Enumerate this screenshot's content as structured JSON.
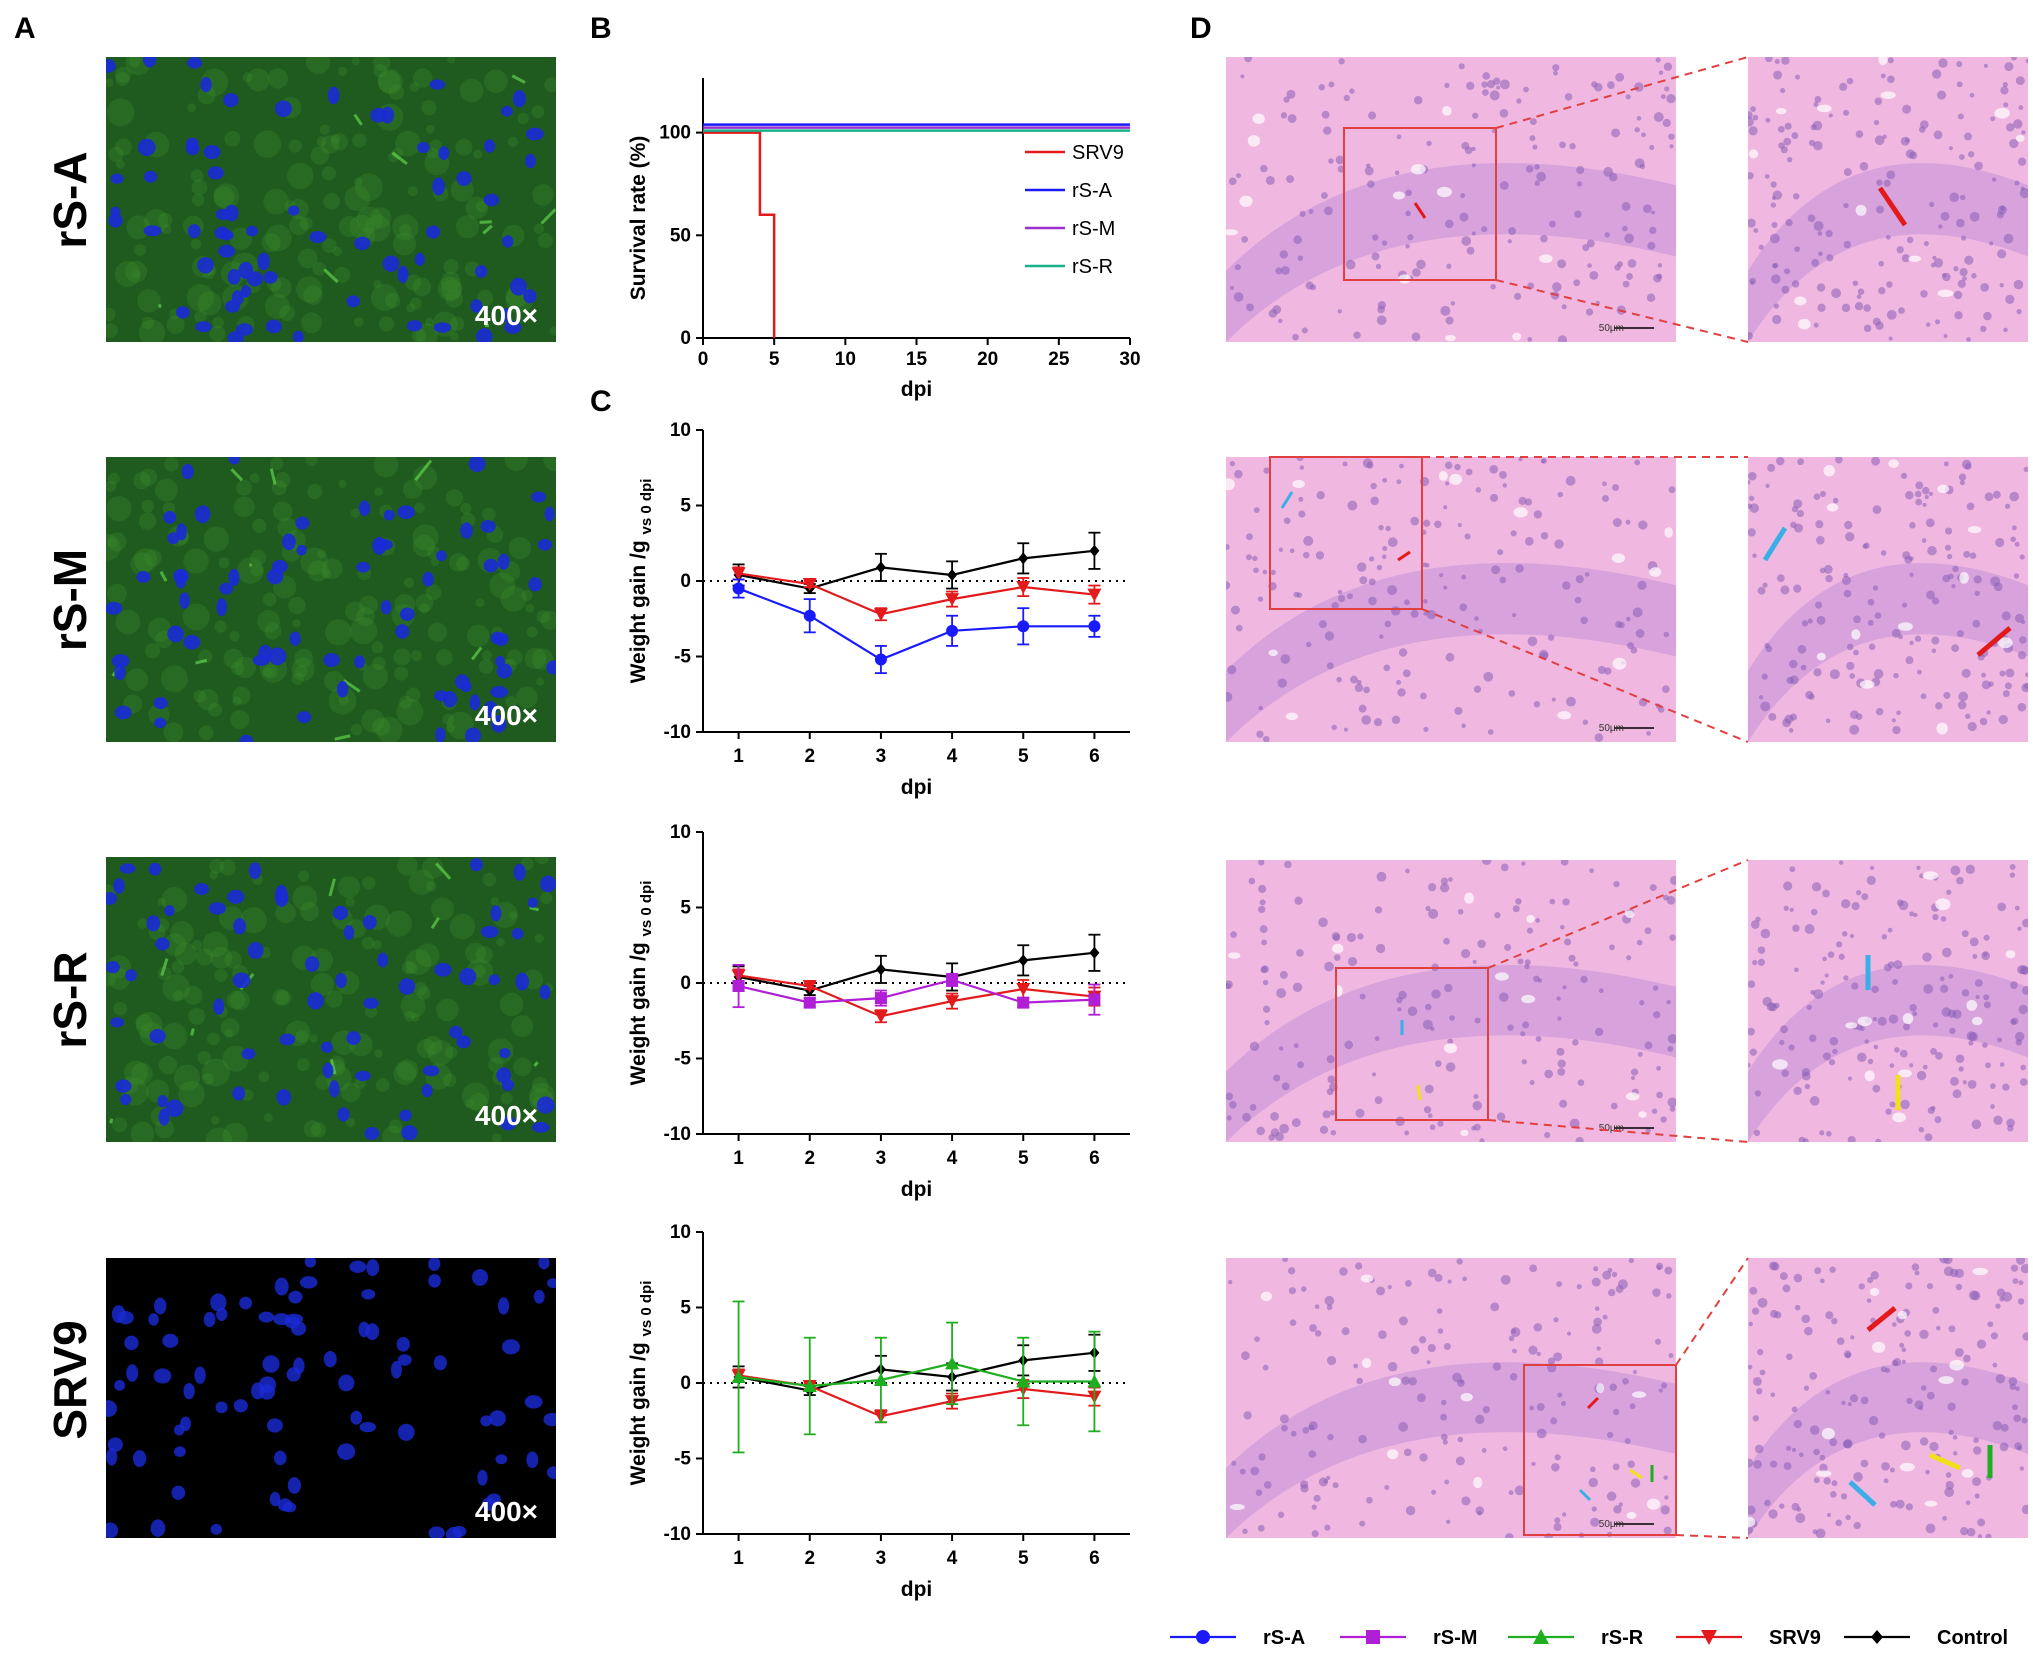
{
  "panels": {
    "A": "A",
    "B": "B",
    "C": "C",
    "D": "D"
  },
  "rows": [
    "rS-A",
    "rS-M",
    "rS-R",
    "SRV9"
  ],
  "magnification": "400×",
  "scale_bar": "50μm",
  "legend": [
    {
      "name": "rS-A",
      "color": "#1a1aff",
      "marker": "circle"
    },
    {
      "name": "rS-M",
      "color": "#b01fd6",
      "marker": "square"
    },
    {
      "name": "rS-R",
      "color": "#1fae1f",
      "marker": "triangle-up"
    },
    {
      "name": "SRV9",
      "color": "#e31a1c",
      "marker": "triangle-down"
    },
    {
      "name": "Control",
      "color": "#000000",
      "marker": "diamond"
    }
  ],
  "colors": {
    "fluor_bg": "#1f5a1f",
    "nucleus": "#1a2bd6",
    "he_bg": "#f0b8e0",
    "he_cells": "#8a5fb8"
  },
  "chart_data": [
    {
      "type": "line",
      "panel": "B",
      "xlabel": "dpi",
      "ylabel": "Survival rate (%)",
      "xlim": [
        0,
        30
      ],
      "ylim": [
        0,
        100
      ],
      "xticks": [
        0,
        5,
        10,
        15,
        20,
        25,
        30
      ],
      "yticks": [
        0,
        50,
        100
      ],
      "legend_position": "right",
      "series": [
        {
          "name": "SRV9",
          "color": "#e31a1c",
          "step": [
            [
              0,
              100
            ],
            [
              4,
              100
            ],
            [
              4,
              60
            ],
            [
              5,
              60
            ],
            [
              5,
              0
            ]
          ]
        },
        {
          "name": "rS-A",
          "color": "#1a1aff",
          "step": [
            [
              0,
              100
            ],
            [
              30,
              100
            ]
          ]
        },
        {
          "name": "rS-M",
          "color": "#9d2fd1",
          "step": [
            [
              0,
              100
            ],
            [
              30,
              100
            ]
          ]
        },
        {
          "name": "rS-R",
          "color": "#17b28a",
          "step": [
            [
              0,
              100
            ],
            [
              30,
              100
            ]
          ]
        }
      ]
    },
    {
      "type": "line",
      "panel": "C",
      "xlabel": "dpi",
      "ylabel": "Weight gain /g",
      "ylabel_sub": "vs 0 dpi",
      "x": [
        1,
        2,
        3,
        4,
        5,
        6
      ],
      "xlim": [
        0.5,
        6.5
      ],
      "ylim": [
        -10,
        10
      ],
      "yticks": [
        -10,
        -5,
        0,
        5,
        10
      ],
      "series": [
        {
          "name": "Control",
          "color": "#000000",
          "marker": "diamond",
          "values": [
            0.4,
            -0.5,
            0.9,
            0.4,
            1.5,
            2.0
          ],
          "errors": [
            0.7,
            0.3,
            0.9,
            0.9,
            1.0,
            1.2
          ]
        },
        {
          "name": "SRV9",
          "color": "#e31a1c",
          "marker": "triangle-down",
          "values": [
            0.5,
            -0.2,
            -2.2,
            -1.2,
            -0.4,
            -0.9
          ],
          "errors": [
            0.4,
            0.2,
            0.4,
            0.5,
            0.6,
            0.6
          ]
        },
        {
          "name": "rS-A",
          "color": "#1a1aff",
          "marker": "circle",
          "values": [
            -0.5,
            -2.3,
            -5.2,
            -3.3,
            -3.0,
            -3.0
          ],
          "errors": [
            0.6,
            1.1,
            0.9,
            1.0,
            1.2,
            0.7
          ]
        }
      ]
    },
    {
      "type": "line",
      "panel": "C",
      "xlabel": "dpi",
      "ylabel": "Weight gain /g",
      "ylabel_sub": "vs 0 dpi",
      "x": [
        1,
        2,
        3,
        4,
        5,
        6
      ],
      "xlim": [
        0.5,
        6.5
      ],
      "ylim": [
        -10,
        10
      ],
      "yticks": [
        -10,
        -5,
        0,
        5,
        10
      ],
      "series": [
        {
          "name": "Control",
          "color": "#000000",
          "marker": "diamond",
          "values": [
            0.4,
            -0.5,
            0.9,
            0.4,
            1.5,
            2.0
          ],
          "errors": [
            0.7,
            0.3,
            0.9,
            0.9,
            1.0,
            1.2
          ]
        },
        {
          "name": "SRV9",
          "color": "#e31a1c",
          "marker": "triangle-down",
          "values": [
            0.5,
            -0.2,
            -2.2,
            -1.2,
            -0.4,
            -0.9
          ],
          "errors": [
            0.4,
            0.2,
            0.4,
            0.5,
            0.6,
            0.6
          ]
        },
        {
          "name": "rS-M",
          "color": "#b01fd6",
          "marker": "square",
          "values": [
            -0.2,
            -1.3,
            -1.0,
            0.2,
            -1.3,
            -1.1
          ],
          "errors": [
            1.4,
            0.3,
            0.5,
            0.4,
            0.3,
            1.0
          ]
        }
      ]
    },
    {
      "type": "line",
      "panel": "C",
      "xlabel": "dpi",
      "ylabel": "Weight gain /g",
      "ylabel_sub": "vs 0 dpi",
      "x": [
        1,
        2,
        3,
        4,
        5,
        6
      ],
      "xlim": [
        0.5,
        6.5
      ],
      "ylim": [
        -10,
        10
      ],
      "yticks": [
        -10,
        -5,
        0,
        5,
        10
      ],
      "series": [
        {
          "name": "Control",
          "color": "#000000",
          "marker": "diamond",
          "values": [
            0.4,
            -0.5,
            0.9,
            0.4,
            1.5,
            2.0
          ],
          "errors": [
            0.7,
            0.3,
            0.9,
            0.9,
            1.0,
            1.2
          ]
        },
        {
          "name": "SRV9",
          "color": "#e31a1c",
          "marker": "triangle-down",
          "values": [
            0.5,
            -0.2,
            -2.2,
            -1.2,
            -0.4,
            -0.9
          ],
          "errors": [
            0.4,
            0.2,
            0.4,
            0.5,
            0.6,
            0.6
          ]
        },
        {
          "name": "rS-R",
          "color": "#1fae1f",
          "marker": "triangle-up",
          "values": [
            0.4,
            -0.2,
            0.2,
            1.3,
            0.1,
            0.1
          ],
          "errors": [
            5.0,
            3.2,
            2.8,
            2.7,
            2.9,
            3.3
          ]
        }
      ]
    }
  ]
}
